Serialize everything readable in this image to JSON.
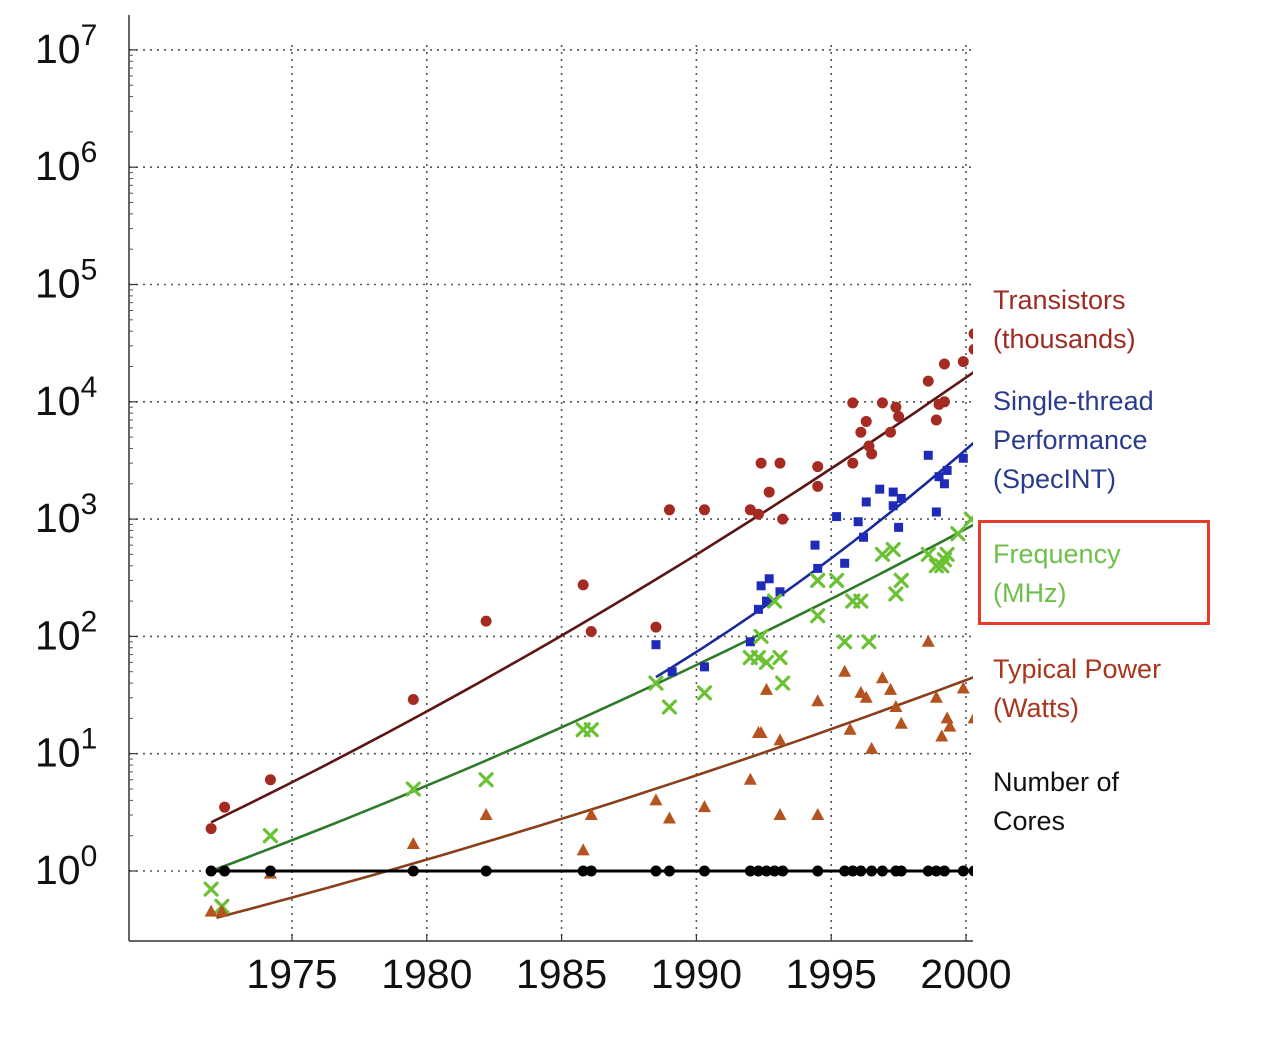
{
  "chart_data": {
    "type": "scatter",
    "title": "",
    "xlabel": "",
    "ylabel": "",
    "x_ticks": [
      "1975",
      "1980",
      "1985",
      "1990",
      "1995",
      "2000"
    ],
    "x_tick_values": [
      1975,
      1980,
      1985,
      1990,
      1995,
      2000
    ],
    "y_scale": "log",
    "y_ticks": [
      {
        "base": "10",
        "exp": "0",
        "value": 1
      },
      {
        "base": "10",
        "exp": "1",
        "value": 10
      },
      {
        "base": "10",
        "exp": "2",
        "value": 100
      },
      {
        "base": "10",
        "exp": "3",
        "value": 1000
      },
      {
        "base": "10",
        "exp": "4",
        "value": 10000
      },
      {
        "base": "10",
        "exp": "5",
        "value": 100000
      },
      {
        "base": "10",
        "exp": "6",
        "value": 1000000
      },
      {
        "base": "10",
        "exp": "7",
        "value": 10000000
      }
    ],
    "xlim": [
      1969,
      2000.3
    ],
    "ylim": [
      0.3,
      12000000
    ],
    "grid": true,
    "legend_placement": "right",
    "series": [
      {
        "name": "Transistors (thousands)",
        "legend_lines": [
          "Transistors",
          "(thousands)"
        ],
        "color": "#a52a22",
        "marker": "circle",
        "trend": {
          "x_start": 1972,
          "x_end": 2000.3,
          "y_start": 2.6,
          "y_end": 18000
        },
        "points": [
          [
            1972,
            2.3
          ],
          [
            1972.5,
            3.5
          ],
          [
            1974.2,
            6
          ],
          [
            1979.5,
            29
          ],
          [
            1982.2,
            135
          ],
          [
            1985.8,
            275
          ],
          [
            1986.1,
            110
          ],
          [
            1988.5,
            120
          ],
          [
            1989,
            1200
          ],
          [
            1990.3,
            1200
          ],
          [
            1992,
            1200
          ],
          [
            1992.3,
            1100
          ],
          [
            1992.4,
            3000
          ],
          [
            1992.7,
            1700
          ],
          [
            1993.1,
            3000
          ],
          [
            1993.2,
            1000
          ],
          [
            1994.5,
            1900
          ],
          [
            1994.5,
            2800
          ],
          [
            1995.8,
            9800
          ],
          [
            1995.8,
            3000
          ],
          [
            1996.1,
            5500
          ],
          [
            1996.3,
            6800
          ],
          [
            1996.4,
            4200
          ],
          [
            1996.5,
            3600
          ],
          [
            1996.9,
            9800
          ],
          [
            1997.2,
            5500
          ],
          [
            1997.4,
            9000
          ],
          [
            1997.5,
            7500
          ],
          [
            1998.6,
            15000
          ],
          [
            1998.9,
            7000
          ],
          [
            1999,
            9500
          ],
          [
            1999.2,
            10000
          ],
          [
            1999.2,
            21000
          ],
          [
            1999.9,
            22000
          ],
          [
            2000.3,
            38000
          ],
          [
            2000.3,
            28000
          ]
        ]
      },
      {
        "name": "Single-thread Performance (SpecINT)",
        "legend_lines": [
          "Single-thread",
          "Performance",
          "(SpecINT)"
        ],
        "color": "#1f2bb8",
        "marker": "square",
        "trend": {
          "x_start": 1988.5,
          "x_end": 2000.3,
          "y_start": 45,
          "y_end": 4500
        },
        "points": [
          [
            1988.5,
            85
          ],
          [
            1989.1,
            50
          ],
          [
            1990.3,
            55
          ],
          [
            1992,
            90
          ],
          [
            1992.3,
            170
          ],
          [
            1992.4,
            270
          ],
          [
            1992.6,
            200
          ],
          [
            1992.7,
            310
          ],
          [
            1993.1,
            240
          ],
          [
            1994.4,
            600
          ],
          [
            1994.5,
            380
          ],
          [
            1995.2,
            1050
          ],
          [
            1995.5,
            420
          ],
          [
            1996,
            950
          ],
          [
            1996.2,
            700
          ],
          [
            1996.3,
            1400
          ],
          [
            1996.8,
            1800
          ],
          [
            1997.3,
            1300
          ],
          [
            1997.3,
            1700
          ],
          [
            1997.5,
            850
          ],
          [
            1997.6,
            1500
          ],
          [
            1998.6,
            3500
          ],
          [
            1998.9,
            1150
          ],
          [
            1999,
            2300
          ],
          [
            1999.2,
            2000
          ],
          [
            1999.3,
            2600
          ],
          [
            1999.9,
            3300
          ]
        ]
      },
      {
        "name": "Frequency (MHz)",
        "legend_lines": [
          "Frequency",
          "(MHz)"
        ],
        "color": "#6bc134",
        "marker": "x",
        "trend": {
          "x_start": 1972,
          "x_end": 2000.3,
          "y_start": 1.0,
          "y_end": 900
        },
        "points": [
          [
            1972,
            0.7
          ],
          [
            1972.4,
            0.5
          ],
          [
            1974.2,
            2
          ],
          [
            1979.5,
            5
          ],
          [
            1982.2,
            6
          ],
          [
            1985.8,
            16
          ],
          [
            1986.1,
            16
          ],
          [
            1988.5,
            40
          ],
          [
            1989,
            25
          ],
          [
            1990.3,
            33
          ],
          [
            1992,
            66
          ],
          [
            1992.3,
            66
          ],
          [
            1992.4,
            100
          ],
          [
            1992.6,
            60
          ],
          [
            1992.9,
            200
          ],
          [
            1993.1,
            66
          ],
          [
            1993.2,
            40
          ],
          [
            1994.5,
            150
          ],
          [
            1994.5,
            300
          ],
          [
            1995.2,
            300
          ],
          [
            1995.5,
            90
          ],
          [
            1995.8,
            200
          ],
          [
            1996.1,
            200
          ],
          [
            1996.4,
            90
          ],
          [
            1996.9,
            500
          ],
          [
            1997.3,
            550
          ],
          [
            1997.4,
            230
          ],
          [
            1997.6,
            300
          ],
          [
            1998.6,
            500
          ],
          [
            1998.9,
            400
          ],
          [
            1999.1,
            400
          ],
          [
            1999.2,
            450
          ],
          [
            1999.3,
            500
          ],
          [
            1999.7,
            750
          ],
          [
            2000.2,
            1000
          ]
        ]
      },
      {
        "name": "Typical Power (Watts)",
        "legend_lines": [
          "Typical Power",
          "(Watts)"
        ],
        "color": "#b4531f",
        "marker": "triangle",
        "trend": {
          "x_start": 1972.2,
          "x_end": 2000.3,
          "y_start": 0.4,
          "y_end": 45
        },
        "points": [
          [
            1972,
            0.45
          ],
          [
            1972.4,
            0.45
          ],
          [
            1974.2,
            0.95
          ],
          [
            1979.5,
            1.7
          ],
          [
            1982.2,
            3
          ],
          [
            1985.8,
            1.5
          ],
          [
            1986.1,
            3
          ],
          [
            1988.5,
            4
          ],
          [
            1989,
            2.8
          ],
          [
            1990.3,
            3.5
          ],
          [
            1992,
            6
          ],
          [
            1992.3,
            15
          ],
          [
            1992.4,
            15
          ],
          [
            1992.6,
            35
          ],
          [
            1993.1,
            13
          ],
          [
            1993.1,
            3
          ],
          [
            1994.5,
            3
          ],
          [
            1994.5,
            28
          ],
          [
            1995.5,
            50
          ],
          [
            1995.7,
            16
          ],
          [
            1996.1,
            33
          ],
          [
            1996.3,
            30
          ],
          [
            1996.5,
            11
          ],
          [
            1996.9,
            44
          ],
          [
            1997.2,
            35
          ],
          [
            1997.4,
            25
          ],
          [
            1997.6,
            18
          ],
          [
            1998.6,
            90
          ],
          [
            1998.9,
            30
          ],
          [
            1999.1,
            14
          ],
          [
            1999.3,
            20
          ],
          [
            1999.4,
            17
          ],
          [
            1999.9,
            36
          ],
          [
            2000.3,
            20
          ]
        ]
      },
      {
        "name": "Number of Cores",
        "legend_lines": [
          "Number of",
          "Cores"
        ],
        "color": "#000000",
        "marker": "circle",
        "trend": {
          "x_start": 1972,
          "x_end": 2000.3,
          "y_start": 1,
          "y_end": 1
        },
        "points": [
          [
            1972,
            1
          ],
          [
            1972.5,
            1
          ],
          [
            1974.2,
            1
          ],
          [
            1979.5,
            1
          ],
          [
            1982.2,
            1
          ],
          [
            1985.8,
            1
          ],
          [
            1986.1,
            1
          ],
          [
            1988.5,
            1
          ],
          [
            1989,
            1
          ],
          [
            1990.3,
            1
          ],
          [
            1992,
            1
          ],
          [
            1992.3,
            1
          ],
          [
            1992.6,
            1
          ],
          [
            1992.9,
            1
          ],
          [
            1993.2,
            1
          ],
          [
            1994.5,
            1
          ],
          [
            1995.5,
            1
          ],
          [
            1995.8,
            1
          ],
          [
            1996.1,
            1
          ],
          [
            1996.5,
            1
          ],
          [
            1996.9,
            1
          ],
          [
            1997.4,
            1
          ],
          [
            1997.6,
            1
          ],
          [
            1998.6,
            1
          ],
          [
            1998.9,
            1
          ],
          [
            1999.2,
            1
          ],
          [
            1999.9,
            1
          ],
          [
            2000.3,
            1
          ]
        ]
      }
    ],
    "highlighted_series": "Frequency (MHz)",
    "highlight_color": "#e53a2c"
  }
}
